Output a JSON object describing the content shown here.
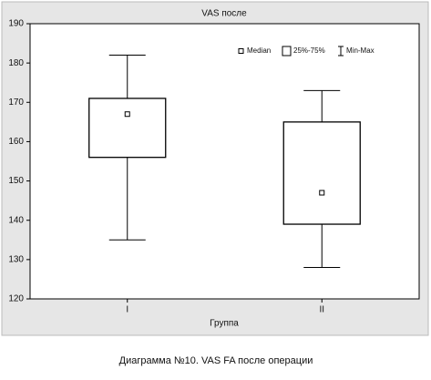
{
  "chart_data": {
    "type": "box",
    "title": "VAS после",
    "x_label": "Группа",
    "categories": [
      "I",
      "II"
    ],
    "boxes": [
      {
        "min": 135,
        "q1": 156,
        "median": 167,
        "q3": 171,
        "max": 182
      },
      {
        "min": 128,
        "q1": 139,
        "median": 147,
        "q3": 165,
        "max": 173
      }
    ],
    "legend": [
      "Median",
      "25%-75%",
      "Min-Max"
    ],
    "legend_position": "upper right",
    "color": "#000000",
    "ylim": [
      120,
      190
    ],
    "yticks": [
      120,
      130,
      140,
      150,
      160,
      170,
      180,
      190
    ],
    "grid": false
  },
  "caption": "Диаграмма №10. VAS FA после операции"
}
